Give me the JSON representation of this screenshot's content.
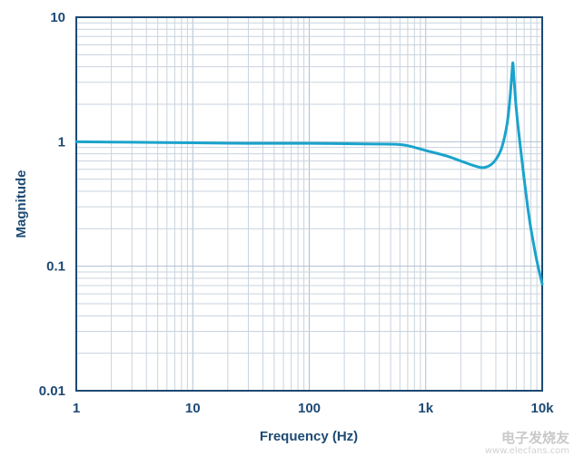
{
  "chart_data": {
    "type": "line",
    "title": "",
    "xlabel": "Frequency (Hz)",
    "ylabel": "Magnitude",
    "x_scale": "log",
    "y_scale": "log",
    "xlim": [
      1,
      10000
    ],
    "ylim": [
      0.01,
      10
    ],
    "grid": true,
    "x_ticks": [
      {
        "value": 1,
        "label": "1"
      },
      {
        "value": 10,
        "label": "10"
      },
      {
        "value": 100,
        "label": "100"
      },
      {
        "value": 1000,
        "label": "1k"
      },
      {
        "value": 10000,
        "label": "10k"
      }
    ],
    "y_ticks": [
      {
        "value": 10,
        "label": "10"
      },
      {
        "value": 1,
        "label": "1"
      },
      {
        "value": 0.1,
        "label": "0.1"
      },
      {
        "value": 0.01,
        "label": "0.01"
      }
    ],
    "series": [
      {
        "color": "#1aa3cc",
        "x": [
          1,
          3,
          10,
          30,
          100,
          300,
          550,
          700,
          1000,
          1500,
          2000,
          2500,
          3000,
          3500,
          4000,
          4500,
          5000,
          5300,
          5500,
          5600,
          5700,
          6000,
          6500,
          7000,
          7500,
          8000,
          9000,
          10000
        ],
        "y": [
          1.0,
          0.99,
          0.98,
          0.97,
          0.97,
          0.96,
          0.955,
          0.93,
          0.85,
          0.77,
          0.7,
          0.65,
          0.62,
          0.64,
          0.72,
          0.9,
          1.4,
          2.3,
          3.6,
          4.3,
          3.4,
          1.8,
          0.9,
          0.5,
          0.3,
          0.2,
          0.11,
          0.072
        ]
      }
    ]
  },
  "watermark": {
    "text": "电子发烧友",
    "sub": "www.elecfans.com"
  }
}
